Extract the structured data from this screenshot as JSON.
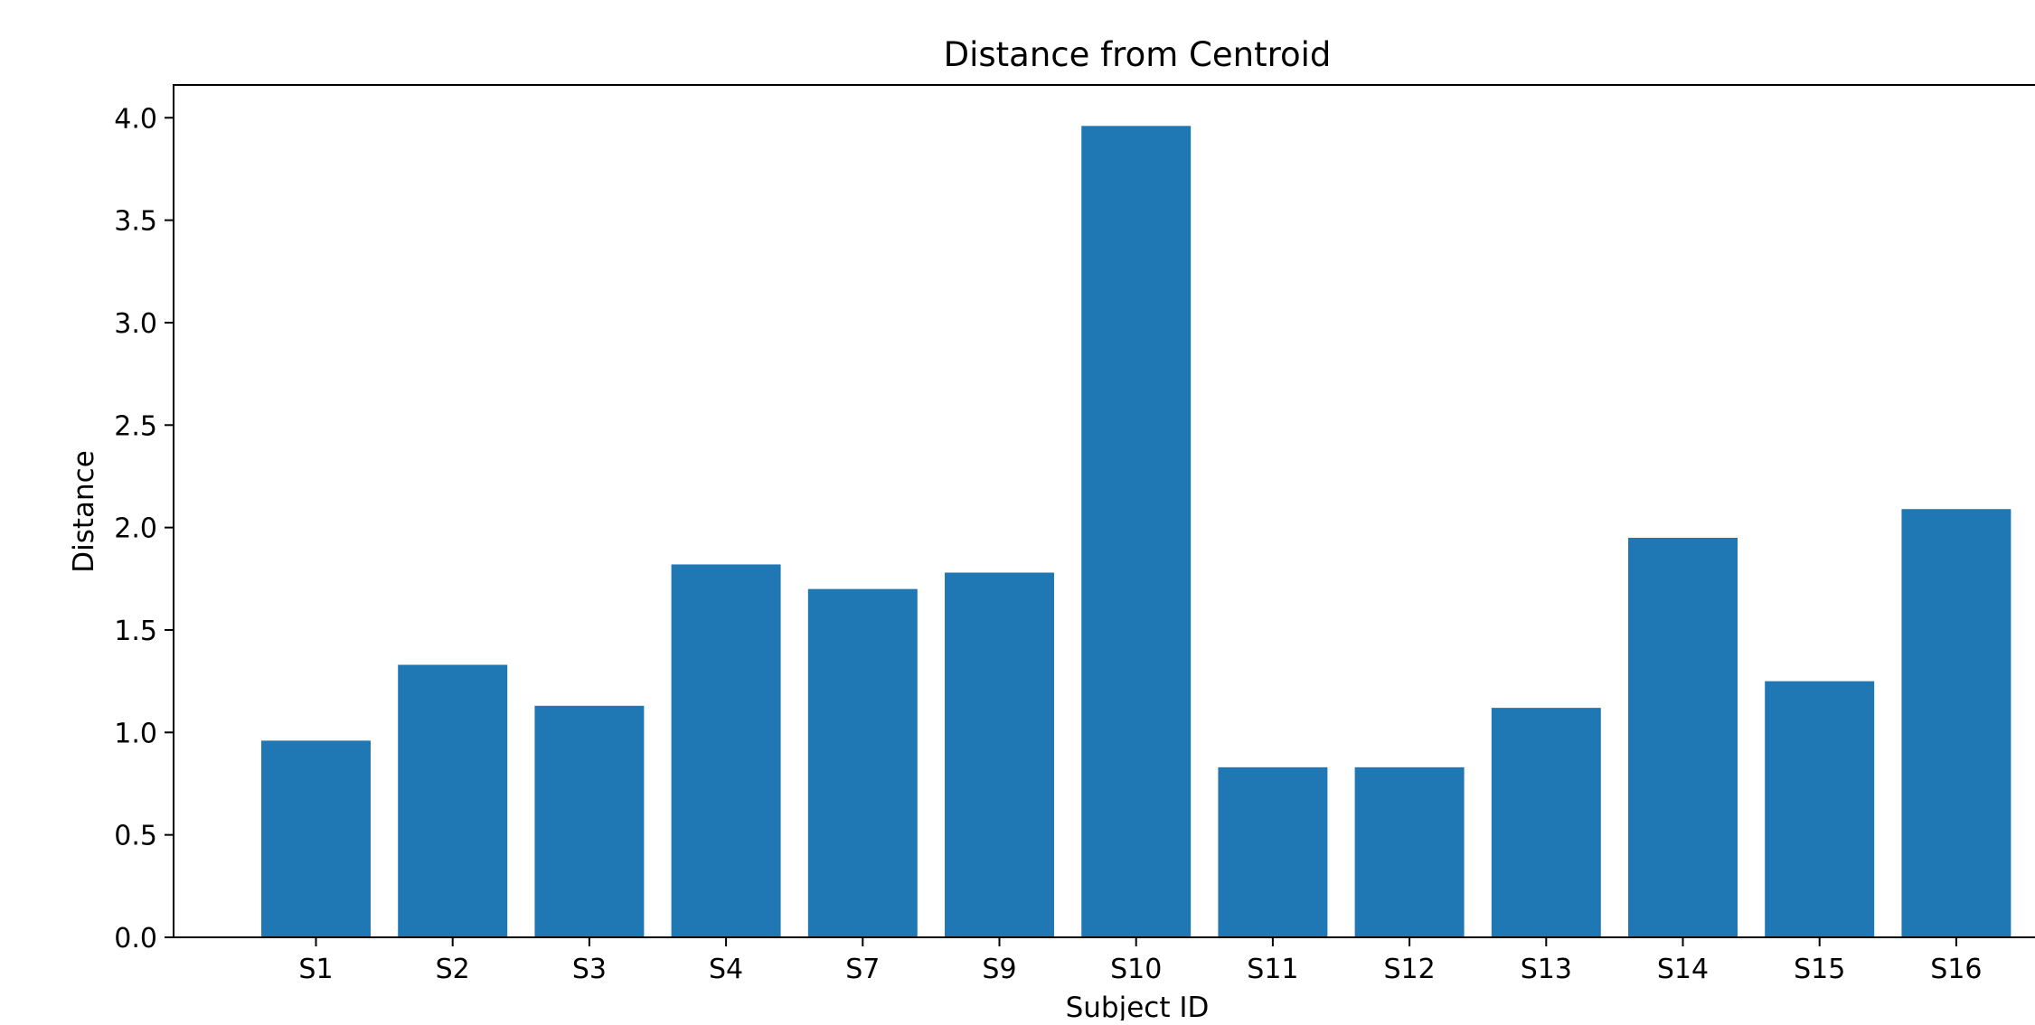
{
  "chart_data": {
    "type": "bar",
    "title": "Distance from Centroid",
    "xlabel": "Subject ID",
    "ylabel": "Distance",
    "categories": [
      "S1",
      "S2",
      "S3",
      "S4",
      "S7",
      "S9",
      "S10",
      "S11",
      "S12",
      "S13",
      "S14",
      "S15",
      "S16"
    ],
    "values": [
      0.96,
      1.33,
      1.13,
      1.82,
      1.7,
      1.78,
      3.96,
      0.83,
      0.83,
      1.12,
      1.95,
      1.25,
      2.09
    ],
    "ylim": [
      0,
      4.16
    ],
    "yticks": [
      "0.0",
      "0.5",
      "1.0",
      "1.5",
      "2.0",
      "2.5",
      "3.0",
      "3.5",
      "4.0"
    ],
    "bar_color": "#1f77b4",
    "grid": false,
    "legend": false
  }
}
